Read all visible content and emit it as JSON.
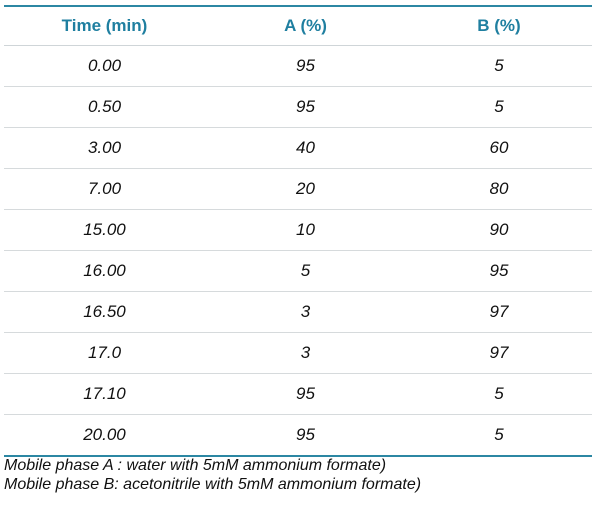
{
  "table": {
    "headers": [
      "Time (min)",
      "A (%)",
      "B (%)"
    ],
    "rows": [
      [
        "0.00",
        "95",
        "5"
      ],
      [
        "0.50",
        "95",
        "5"
      ],
      [
        "3.00",
        "40",
        "60"
      ],
      [
        "7.00",
        "20",
        "80"
      ],
      [
        "15.00",
        "10",
        "90"
      ],
      [
        "16.00",
        "5",
        "95"
      ],
      [
        "16.50",
        "3",
        "97"
      ],
      [
        "17.0",
        "3",
        "97"
      ],
      [
        "17.10",
        "95",
        "5"
      ],
      [
        "20.00",
        "95",
        "5"
      ]
    ]
  },
  "notes": [
    "Mobile phase A : water with 5mM ammonium formate)",
    "Mobile phase B: acetonitrile with 5mM ammonium formate)"
  ],
  "colors": {
    "header_text": "#1f7fa0",
    "rule": "#2c87a3"
  }
}
